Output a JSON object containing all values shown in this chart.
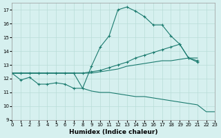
{
  "xlabel": "Humidex (Indice chaleur)",
  "bg_color": "#d6f0ef",
  "grid_color": "#b8dcd8",
  "line_color": "#1a7a6e",
  "xlim": [
    0,
    23
  ],
  "ylim": [
    9,
    17.5
  ],
  "yticks": [
    9,
    10,
    11,
    12,
    13,
    14,
    15,
    16,
    17
  ],
  "xticks": [
    0,
    1,
    2,
    3,
    4,
    5,
    6,
    7,
    8,
    9,
    10,
    11,
    12,
    13,
    14,
    15,
    16,
    17,
    18,
    19,
    20,
    21,
    22,
    23
  ],
  "s1_x": [
    0,
    1,
    2,
    3,
    4,
    5,
    6,
    7,
    8,
    9,
    10,
    11,
    12,
    13,
    14,
    15,
    16,
    17,
    18,
    19,
    20,
    21
  ],
  "s1_y": [
    12.4,
    11.9,
    12.1,
    11.6,
    11.6,
    11.7,
    11.6,
    11.3,
    11.3,
    12.9,
    14.3,
    15.1,
    17.0,
    17.2,
    16.9,
    16.5,
    15.9,
    15.9,
    15.1,
    14.5,
    13.5,
    13.2
  ],
  "s2_x": [
    0,
    1,
    2,
    3,
    4,
    5,
    6,
    7,
    8,
    9,
    10,
    11,
    12,
    13,
    14,
    15,
    16,
    17,
    18,
    19,
    20,
    21
  ],
  "s2_y": [
    12.4,
    12.4,
    12.4,
    12.4,
    12.4,
    12.4,
    12.4,
    12.4,
    12.4,
    12.5,
    12.6,
    12.8,
    13.0,
    13.2,
    13.5,
    13.7,
    13.9,
    14.1,
    14.3,
    14.5,
    13.5,
    13.3
  ],
  "s3_x": [
    0,
    1,
    2,
    3,
    4,
    5,
    6,
    7,
    8,
    9,
    10,
    11,
    12,
    13,
    14,
    15,
    16,
    17,
    18,
    19,
    20,
    21,
    22,
    23
  ],
  "s3_y": [
    12.4,
    12.4,
    12.4,
    12.4,
    12.4,
    12.4,
    12.4,
    12.4,
    12.4,
    12.4,
    12.5,
    12.6,
    12.7,
    12.9,
    13.0,
    13.1,
    13.2,
    13.3,
    13.3,
    13.4,
    13.5,
    13.5,
    null,
    null
  ],
  "s4_x": [
    0,
    1,
    2,
    3,
    4,
    5,
    6,
    7,
    8,
    9,
    10,
    11,
    12,
    13,
    14,
    15,
    16,
    17,
    18,
    19,
    20,
    21,
    22,
    23
  ],
  "s4_y": [
    12.4,
    12.4,
    12.4,
    12.4,
    12.4,
    12.4,
    12.4,
    12.4,
    11.3,
    11.1,
    11.0,
    11.0,
    10.9,
    10.8,
    10.7,
    10.7,
    10.6,
    10.5,
    10.4,
    10.3,
    10.2,
    10.1,
    9.6,
    9.6
  ]
}
